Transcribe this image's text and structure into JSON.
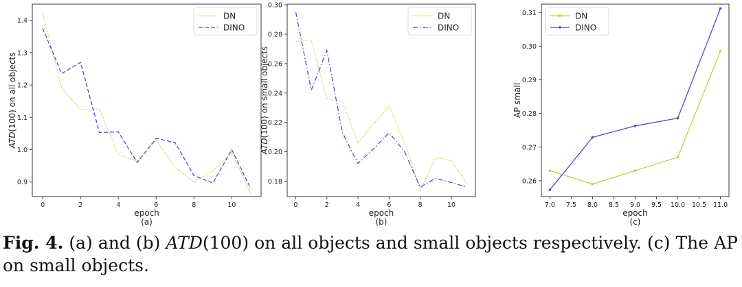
{
  "chart_data": [
    {
      "type": "line",
      "panel_label": "(a)",
      "xlabel": "epoch",
      "ylabel_italic": "ATD",
      "ylabel_rest": "(100) on all objects",
      "x": [
        0,
        1,
        2,
        3,
        4,
        5,
        6,
        7,
        8,
        9,
        10,
        11
      ],
      "xlim": [
        -0.55,
        11.55
      ],
      "ylim": [
        0.855,
        1.45
      ],
      "xticks": [
        0,
        2,
        4,
        6,
        8,
        10
      ],
      "yticks": [
        0.9,
        1.0,
        1.1,
        1.2,
        1.3,
        1.4
      ],
      "ytick_labels": [
        "0.9",
        "1.0",
        "1.1",
        "1.2",
        "1.3",
        "1.4"
      ],
      "legend": "top-right",
      "series": [
        {
          "name": "DN",
          "color": "#c8cf3a",
          "style": "dotted",
          "markers": false,
          "values": [
            1.425,
            1.19,
            1.125,
            1.125,
            0.985,
            0.965,
            1.03,
            0.945,
            0.9,
            0.935,
            0.99,
            0.865
          ]
        },
        {
          "name": "DINO",
          "color": "#4b4bdb",
          "style": "dashed",
          "markers": false,
          "values": [
            1.375,
            1.235,
            1.27,
            1.053,
            1.055,
            0.96,
            1.035,
            1.022,
            0.92,
            0.897,
            1.0,
            0.88
          ]
        }
      ]
    },
    {
      "type": "line",
      "panel_label": "(b)",
      "xlabel": "epoch",
      "ylabel_italic": "ATD",
      "ylabel_rest": "(100) on small objects",
      "x": [
        0,
        1,
        2,
        3,
        4,
        5,
        6,
        7,
        8,
        9,
        10,
        11
      ],
      "xlim": [
        -0.55,
        11.55
      ],
      "ylim": [
        0.1695,
        0.3005
      ],
      "xticks": [
        0,
        2,
        4,
        6,
        8,
        10
      ],
      "yticks": [
        0.18,
        0.2,
        0.22,
        0.24,
        0.26,
        0.28,
        0.3
      ],
      "ytick_labels": [
        "0.18",
        "0.20",
        "0.22",
        "0.24",
        "0.26",
        "0.28",
        "0.30"
      ],
      "legend": "top-right",
      "series": [
        {
          "name": "DN",
          "color": "#c8cf3a",
          "style": "dotted",
          "markers": false,
          "values": [
            0.275,
            0.276,
            0.236,
            0.234,
            0.206,
            0.219,
            0.231,
            0.206,
            0.174,
            0.196,
            0.194,
            0.178
          ]
        },
        {
          "name": "DINO",
          "color": "#4b4bdb",
          "style": "dashdot",
          "markers": false,
          "values": [
            0.295,
            0.242,
            0.269,
            0.213,
            0.192,
            0.202,
            0.213,
            0.2,
            0.176,
            0.182,
            0.179,
            0.176
          ]
        }
      ]
    },
    {
      "type": "line",
      "panel_label": "(c)",
      "xlabel": "epoch",
      "ylabel_italic": "",
      "ylabel_rest": "AP small",
      "x": [
        7,
        8,
        9,
        10,
        11
      ],
      "xlim": [
        6.8,
        11.2
      ],
      "ylim": [
        0.2553,
        0.3125
      ],
      "xticks": [
        7,
        7.5,
        8,
        8.5,
        9,
        9.5,
        10,
        10.5,
        11
      ],
      "xtick_labels": [
        "7.0",
        "7.5",
        "8.0",
        "8.5",
        "9.0",
        "9.5",
        "10.0",
        "10.5",
        "11.0"
      ],
      "yticks": [
        0.26,
        0.27,
        0.28,
        0.29,
        0.3,
        0.31
      ],
      "ytick_labels": [
        "0.26",
        "0.27",
        "0.28",
        "0.29",
        "0.30",
        "0.31"
      ],
      "legend": "top-left",
      "series": [
        {
          "name": "DN",
          "color": "#c8cf3a",
          "style": "solid",
          "markers": true,
          "values": [
            0.263,
            0.259,
            0.263,
            0.267,
            0.2985
          ]
        },
        {
          "name": "DINO",
          "color": "#4b4bdb",
          "style": "solid",
          "markers": true,
          "values": [
            0.2573,
            0.2729,
            0.2763,
            0.2786,
            0.3112
          ]
        }
      ]
    }
  ],
  "caption": {
    "fig_label": "Fig. 4.",
    "text_1": " (a) and (b) ",
    "math": "ATD",
    "text_2": "(100) on all objects and small objects respectively. (c) The AP on small objects."
  }
}
